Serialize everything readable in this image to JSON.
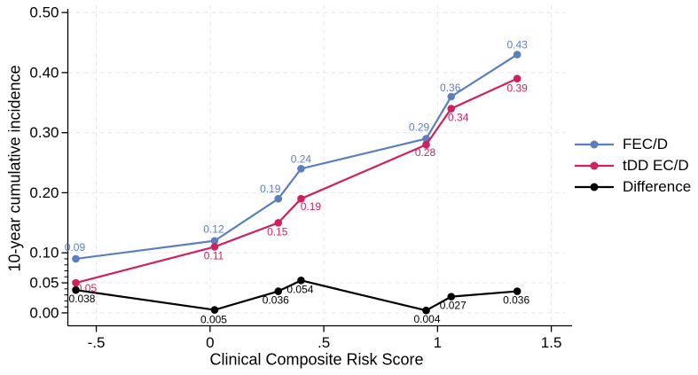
{
  "chart_data": {
    "type": "line",
    "title": "",
    "xlabel": "Clinical Composite Risk Score",
    "ylabel": "10-year cumulative incidence",
    "x": [
      -0.59,
      0.02,
      0.3,
      0.4,
      0.95,
      1.06,
      1.35
    ],
    "series": [
      {
        "name": "FEC/D",
        "color": "#5b7fbe",
        "values": [
          0.09,
          0.12,
          0.19,
          0.24,
          0.29,
          0.36,
          0.43
        ],
        "point_labels": [
          "0.09",
          "0.12",
          "0.19",
          "0.24",
          "0.29",
          "0.36",
          "0.43"
        ],
        "label_offsets": [
          [
            -1,
            -13
          ],
          [
            -1,
            -13
          ],
          [
            -9,
            -11
          ],
          [
            0,
            -11
          ],
          [
            -8,
            -13
          ],
          [
            -1,
            -10
          ],
          [
            0,
            -11
          ]
        ]
      },
      {
        "name": "tDD EC/D",
        "color": "#d0205f",
        "values": [
          0.05,
          0.11,
          0.15,
          0.19,
          0.28,
          0.34,
          0.39
        ],
        "point_labels": [
          "0.05",
          "0.11",
          "0.15",
          "0.19",
          "0.28",
          "0.34",
          "0.39"
        ],
        "label_offsets": [
          [
            12,
            6
          ],
          [
            -1,
            10
          ],
          [
            -1,
            10
          ],
          [
            11,
            9
          ],
          [
            -1,
            9
          ],
          [
            8,
            10
          ],
          [
            0,
            11
          ]
        ]
      },
      {
        "name": "Difference",
        "color": "#000000",
        "values": [
          0.038,
          0.005,
          0.036,
          0.054,
          0.004,
          0.027,
          0.036
        ],
        "point_labels": [
          "0.038",
          "0.005",
          "0.036",
          "0.054",
          "0.004",
          "0.027",
          "0.036"
        ],
        "label_offsets": [
          [
            7,
            10
          ],
          [
            -1,
            11
          ],
          [
            -3,
            10
          ],
          [
            -1,
            10
          ],
          [
            1,
            10
          ],
          [
            2,
            10
          ],
          [
            -1,
            10
          ]
        ]
      }
    ],
    "x_ticks": {
      "values": [
        -0.5,
        0,
        0.5,
        1,
        1.5
      ],
      "labels": [
        "-.5",
        "0",
        ".5",
        "1",
        "1.5"
      ]
    },
    "y_ticks": {
      "values": [
        0,
        0.05,
        0.1,
        0.2,
        0.3,
        0.4,
        0.5
      ],
      "labels": [
        "0.00",
        "0.05",
        "0.10",
        "0.20",
        "0.30",
        "0.40",
        "0.50"
      ]
    },
    "y_minor_ticks": [
      0.01,
      0.02,
      0.03,
      0.04,
      0.06,
      0.07,
      0.08,
      0.09
    ],
    "xlim": [
      -0.625,
      1.56
    ],
    "ylim": [
      -0.0215,
      0.512
    ],
    "grid": {
      "show": true,
      "color": "#e8e8e8",
      "dash": "5,4"
    },
    "legend": {
      "position": "right",
      "entries": [
        "FEC/D",
        "tDD EC/D",
        "Difference"
      ]
    },
    "axis_color": "#000000",
    "background": "#ffffff"
  }
}
